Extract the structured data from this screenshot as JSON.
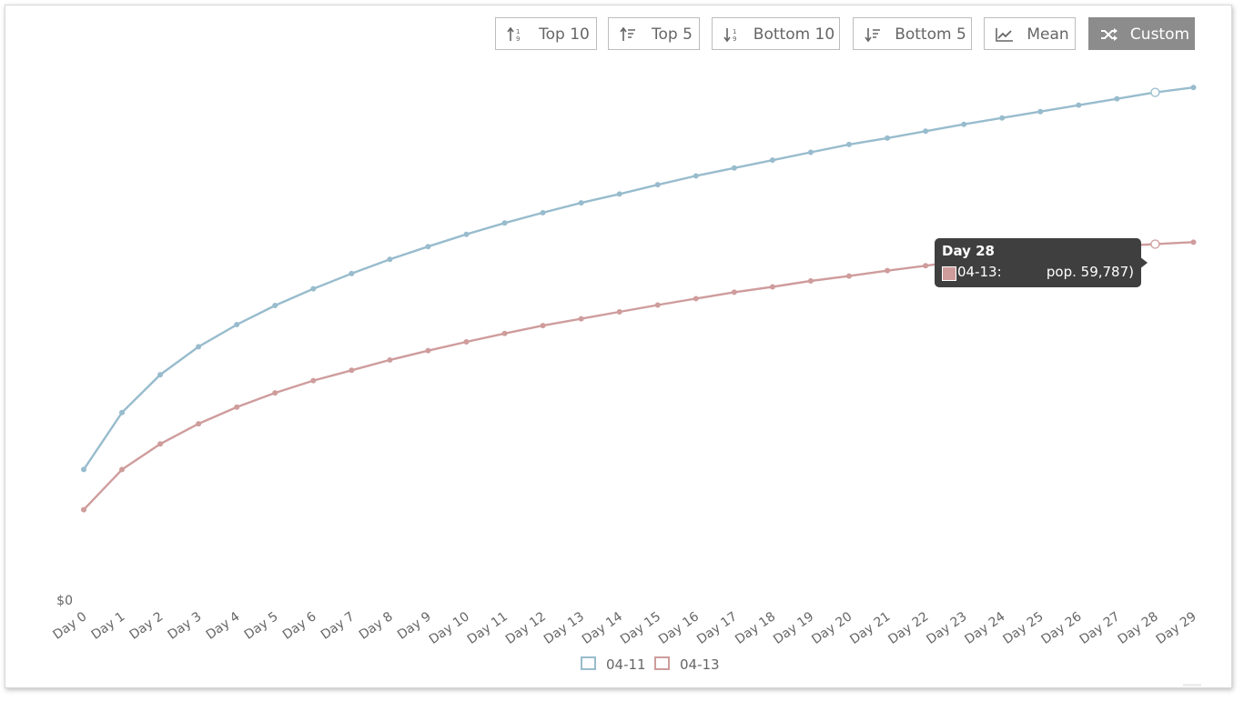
{
  "toolbar": {
    "buttons": [
      {
        "label": "Top 10",
        "icon": "sort-numeric-desc-icon",
        "active": false
      },
      {
        "label": "Top 5",
        "icon": "sort-amount-desc-icon",
        "active": false
      },
      {
        "label": "Bottom 10",
        "icon": "sort-numeric-asc-icon",
        "active": false
      },
      {
        "label": "Bottom 5",
        "icon": "sort-amount-asc-icon",
        "active": false
      },
      {
        "label": "Mean",
        "icon": "line-chart-icon",
        "active": false
      },
      {
        "label": "Custom",
        "icon": "shuffle-icon",
        "active": true
      }
    ]
  },
  "chart_data": {
    "type": "line",
    "categories": [
      "Day 0",
      "Day 1",
      "Day 2",
      "Day 3",
      "Day 4",
      "Day 5",
      "Day 6",
      "Day 7",
      "Day 8",
      "Day 9",
      "Day 10",
      "Day 11",
      "Day 12",
      "Day 13",
      "Day 14",
      "Day 15",
      "Day 16",
      "Day 17",
      "Day 18",
      "Day 19",
      "Day 20",
      "Day 21",
      "Day 22",
      "Day 23",
      "Day 24",
      "Day 25",
      "Day 26",
      "Day 27",
      "Day 28",
      "Day 29"
    ],
    "y_tick_labels": [
      "$0"
    ],
    "ylim": [
      0,
      1.0
    ],
    "grid": false,
    "legend_position": "bottom-center",
    "series": [
      {
        "name": "04-11",
        "color": "#98bccd",
        "values": [
          0.266,
          0.382,
          0.459,
          0.516,
          0.561,
          0.6,
          0.634,
          0.665,
          0.694,
          0.72,
          0.745,
          0.768,
          0.789,
          0.809,
          0.827,
          0.846,
          0.864,
          0.88,
          0.896,
          0.912,
          0.928,
          0.941,
          0.955,
          0.969,
          0.982,
          0.995,
          1.008,
          1.021,
          1.034,
          1.044
        ]
      },
      {
        "name": "04-13",
        "color": "#cf9c9c",
        "values": [
          0.184,
          0.266,
          0.318,
          0.359,
          0.393,
          0.422,
          0.447,
          0.468,
          0.489,
          0.508,
          0.526,
          0.543,
          0.559,
          0.573,
          0.587,
          0.601,
          0.614,
          0.627,
          0.638,
          0.65,
          0.66,
          0.671,
          0.681,
          0.692,
          0.702,
          0.709,
          0.715,
          0.721,
          0.725,
          0.729
        ]
      }
    ]
  },
  "tooltip": {
    "title": "Day 28",
    "series": "04-13:",
    "value": "pop. 59,787)",
    "color": "#cf9c9c"
  },
  "legend": {
    "items": [
      {
        "label": "04-11",
        "color": "#98bccd"
      },
      {
        "label": "04-13",
        "color": "#cf9c9c"
      }
    ]
  }
}
